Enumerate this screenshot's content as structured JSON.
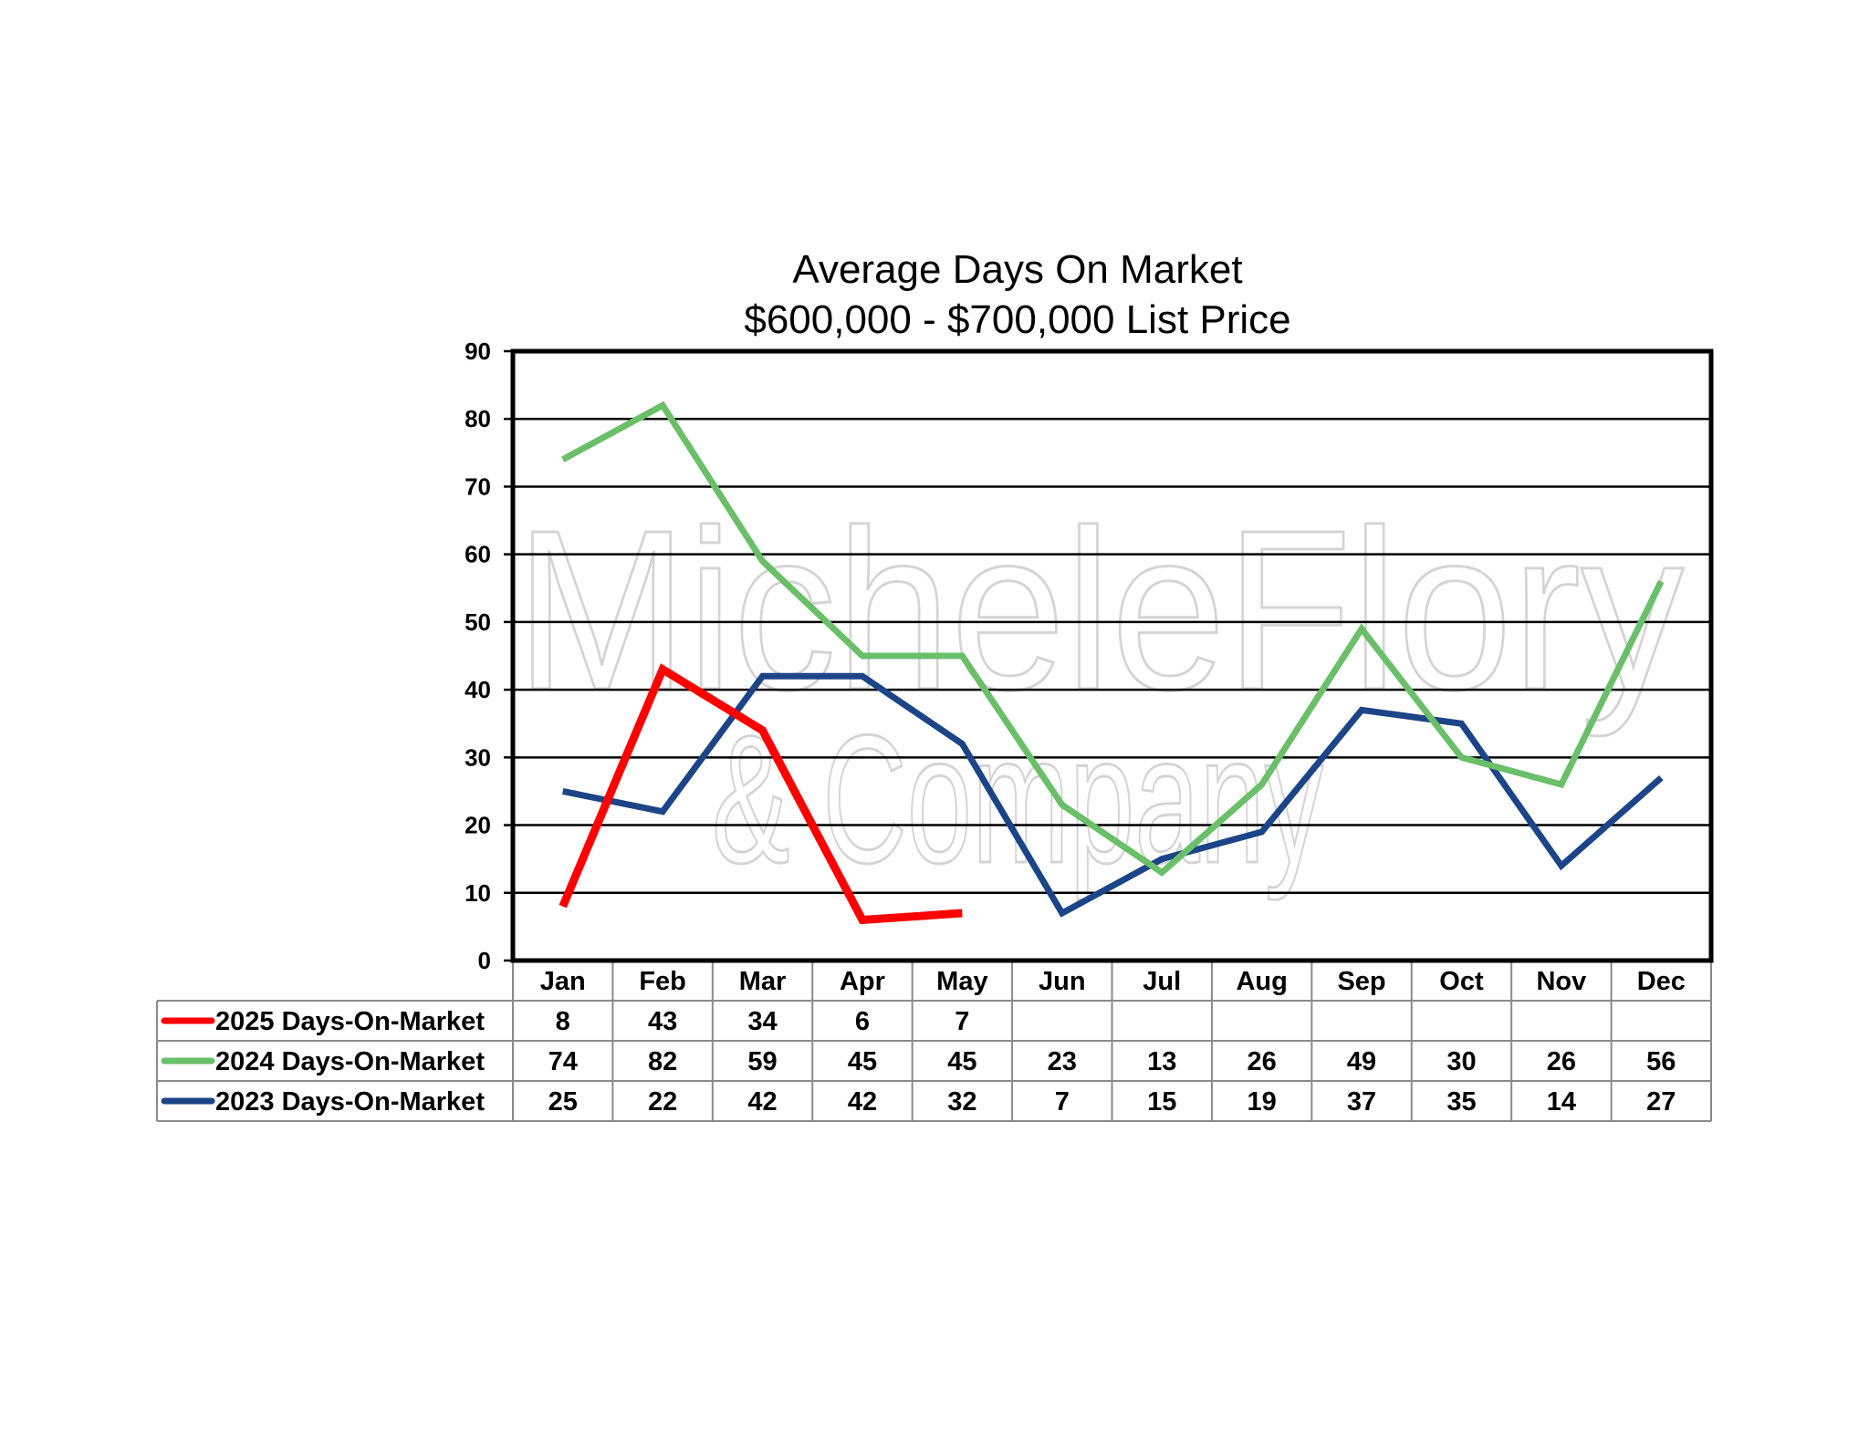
{
  "chart_data": {
    "type": "line",
    "title": "Average Days On Market",
    "subtitle": "$600,000 - $700,000 List Price",
    "categories": [
      "Jan",
      "Feb",
      "Mar",
      "Apr",
      "May",
      "Jun",
      "Jul",
      "Aug",
      "Sep",
      "Oct",
      "Nov",
      "Dec"
    ],
    "ylim": [
      0,
      90
    ],
    "yticks": [
      0,
      10,
      20,
      30,
      40,
      50,
      60,
      70,
      80,
      90
    ],
    "grid": true,
    "legend": "data-table-below",
    "series": [
      {
        "name": "2025 Days-On-Market",
        "color": "#ff0000",
        "values": [
          8,
          43,
          34,
          6,
          7,
          null,
          null,
          null,
          null,
          null,
          null,
          null
        ]
      },
      {
        "name": "2024 Days-On-Market",
        "color": "#6abf69",
        "values": [
          74,
          82,
          59,
          45,
          45,
          23,
          13,
          26,
          49,
          30,
          26,
          56
        ]
      },
      {
        "name": "2023 Days-On-Market",
        "color": "#1c4587",
        "values": [
          25,
          22,
          42,
          42,
          32,
          7,
          15,
          19,
          37,
          35,
          14,
          27
        ]
      }
    ],
    "watermark": [
      "MicheleFlory",
      "& Company"
    ]
  }
}
